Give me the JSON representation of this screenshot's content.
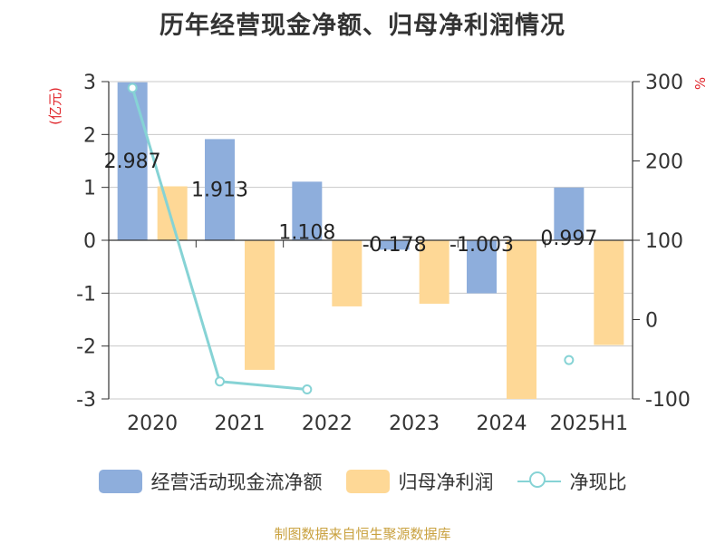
{
  "title": "历年经营现金净额、归母净利润情况",
  "source": "制图数据来自恒生聚源数据库",
  "chart_data": {
    "type": "bar",
    "categories": [
      "2020",
      "2021",
      "2022",
      "2023",
      "2024",
      "2025H1"
    ],
    "series": [
      {
        "name": "经营活动现金流净额",
        "type": "bar",
        "axis": "left",
        "color": "#8eaedc",
        "values": [
          2.987,
          1.913,
          1.108,
          -0.178,
          -1.003,
          0.997
        ],
        "labels": [
          "2.987",
          "1.913",
          "1.108",
          "-0.178",
          "-1.003",
          "0.997"
        ]
      },
      {
        "name": "归母净利润",
        "type": "bar",
        "axis": "left",
        "color": "#fed896",
        "values": [
          1.02,
          -2.45,
          -1.25,
          -1.2,
          -3.0,
          -1.98
        ]
      },
      {
        "name": "净现比",
        "type": "line",
        "axis": "right",
        "color": "#86d3d5",
        "values": [
          292,
          -78,
          -88,
          null,
          null,
          -51
        ]
      }
    ],
    "y_left": {
      "label": "(亿元)",
      "min": -3,
      "max": 3,
      "ticks": [
        3,
        2,
        1,
        0,
        -1,
        -2,
        -3
      ]
    },
    "y_right": {
      "label": "%",
      "min": -100,
      "max": 300,
      "ticks": [
        300,
        200,
        100,
        0,
        -100
      ]
    },
    "grid": true,
    "legend_position": "bottom"
  }
}
